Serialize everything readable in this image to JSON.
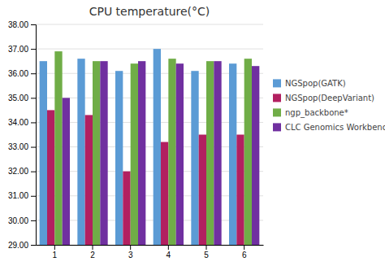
{
  "chart_data": {
    "type": "bar",
    "title": "CPU temperature(°C)",
    "categories": [
      "1",
      "2",
      "3",
      "4",
      "5",
      "6"
    ],
    "series": [
      {
        "name": "NGSpop(GATK)",
        "color": "#5b9bd5",
        "values": [
          36.5,
          36.6,
          36.1,
          37.0,
          36.1,
          36.4
        ]
      },
      {
        "name": "NGSpop(DeepVariant)",
        "color": "#b22060",
        "values": [
          34.5,
          34.3,
          32.0,
          33.2,
          33.5,
          33.5
        ]
      },
      {
        "name": "ngp_backbone*",
        "color": "#70ad47",
        "values": [
          36.9,
          36.5,
          36.4,
          36.6,
          36.5,
          36.6
        ]
      },
      {
        "name": "CLC Genomics Workbench",
        "color": "#7030a0",
        "values": [
          35.0,
          36.5,
          36.5,
          36.4,
          36.5,
          36.3
        ]
      }
    ],
    "ylim": [
      29.0,
      38.0
    ],
    "yticks": [
      {
        "value": 29,
        "label": "29.00"
      },
      {
        "value": 30,
        "label": "30.00"
      },
      {
        "value": 31,
        "label": "31.00"
      },
      {
        "value": 32,
        "label": "32.00"
      },
      {
        "value": 33,
        "label": "33.00"
      },
      {
        "value": 34,
        "label": "34.00"
      },
      {
        "value": 35,
        "label": "35.00"
      },
      {
        "value": 36,
        "label": "36.00"
      },
      {
        "value": 37,
        "label": "37.00"
      },
      {
        "value": 38,
        "label": "38.00"
      }
    ],
    "grid": true,
    "legend": "right"
  }
}
